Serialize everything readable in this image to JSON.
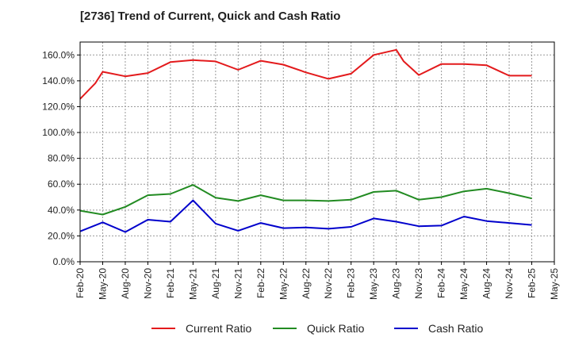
{
  "chart_data": {
    "type": "line",
    "title": "[2736]  Trend of Current, Quick and Cash Ratio",
    "xlabel": "",
    "ylabel": "",
    "ylim": [
      0,
      170
    ],
    "y_ticks": [
      0,
      20,
      40,
      60,
      80,
      100,
      120,
      140,
      160
    ],
    "y_tick_labels": [
      "0.0%",
      "20.0%",
      "40.0%",
      "60.0%",
      "80.0%",
      "100.0%",
      "120.0%",
      "140.0%",
      "160.0%"
    ],
    "x_tick_labels": [
      "Feb-20",
      "May-20",
      "Aug-20",
      "Nov-20",
      "Feb-21",
      "May-21",
      "Aug-21",
      "Nov-21",
      "Feb-22",
      "May-22",
      "Aug-22",
      "Nov-22",
      "Feb-23",
      "May-23",
      "Aug-23",
      "Nov-23",
      "Feb-24",
      "May-24",
      "Aug-24",
      "Nov-24",
      "Feb-25",
      "May-25"
    ],
    "grid": true,
    "legend_position": "bottom",
    "series": [
      {
        "name": "Current Ratio",
        "color": "#e31a1c",
        "points": [
          [
            0,
            126.0
          ],
          [
            0.67,
            138.0
          ],
          [
            1,
            147.0
          ],
          [
            2,
            143.5
          ],
          [
            3,
            146.0
          ],
          [
            4,
            154.5
          ],
          [
            5,
            156.0
          ],
          [
            6,
            155.0
          ],
          [
            7,
            148.5
          ],
          [
            8,
            155.5
          ],
          [
            9,
            152.5
          ],
          [
            10,
            146.5
          ],
          [
            11,
            141.5
          ],
          [
            12,
            145.5
          ],
          [
            13,
            160.0
          ],
          [
            14,
            164.0
          ],
          [
            14.33,
            155.0
          ],
          [
            15,
            144.5
          ],
          [
            16,
            153.0
          ],
          [
            17,
            153.0
          ],
          [
            18,
            152.0
          ],
          [
            19,
            144.0
          ],
          [
            20,
            144.0
          ]
        ]
      },
      {
        "name": "Quick Ratio",
        "color": "#228b22",
        "points": [
          [
            0,
            39.5
          ],
          [
            1,
            36.5
          ],
          [
            2,
            42.5
          ],
          [
            3,
            51.5
          ],
          [
            4,
            52.5
          ],
          [
            5,
            59.5
          ],
          [
            6,
            49.5
          ],
          [
            7,
            47.0
          ],
          [
            8,
            51.5
          ],
          [
            9,
            47.5
          ],
          [
            10,
            47.5
          ],
          [
            11,
            47.0
          ],
          [
            12,
            48.0
          ],
          [
            13,
            54.0
          ],
          [
            14,
            55.0
          ],
          [
            15,
            48.0
          ],
          [
            16,
            50.0
          ],
          [
            17,
            54.5
          ],
          [
            18,
            56.5
          ],
          [
            19,
            53.0
          ],
          [
            20,
            49.0
          ]
        ]
      },
      {
        "name": "Cash Ratio",
        "color": "#0000cc",
        "points": [
          [
            0,
            23.5
          ],
          [
            1,
            30.5
          ],
          [
            2,
            23.0
          ],
          [
            3,
            32.5
          ],
          [
            4,
            31.0
          ],
          [
            5,
            47.5
          ],
          [
            6,
            29.5
          ],
          [
            7,
            24.0
          ],
          [
            8,
            30.0
          ],
          [
            9,
            26.0
          ],
          [
            10,
            26.5
          ],
          [
            11,
            25.5
          ],
          [
            12,
            27.0
          ],
          [
            13,
            33.5
          ],
          [
            14,
            31.0
          ],
          [
            15,
            27.5
          ],
          [
            16,
            28.0
          ],
          [
            17,
            35.0
          ],
          [
            18,
            31.5
          ],
          [
            19,
            30.0
          ],
          [
            20,
            28.5
          ]
        ]
      }
    ]
  }
}
